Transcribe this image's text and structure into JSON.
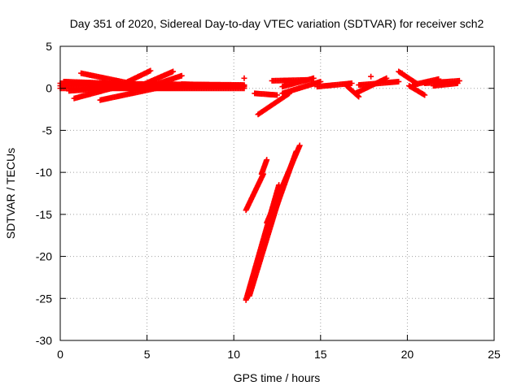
{
  "chart_data": {
    "type": "scatter",
    "title": "Day 351 of 2020, Sidereal Day-to-day VTEC variation (SDTVAR) for receiver sch2",
    "xlabel": "GPS time / hours",
    "ylabel": "SDTVAR / TECUs",
    "xlim": [
      0,
      25
    ],
    "ylim": [
      -30,
      5
    ],
    "xticks": [
      0,
      5,
      10,
      15,
      20,
      25
    ],
    "yticks": [
      5,
      0,
      -5,
      -10,
      -15,
      -20,
      -25,
      -30
    ],
    "grid": true,
    "marker": "plus",
    "color": "#ff0000",
    "segments": [
      {
        "x0": 0.0,
        "y0": 0.3,
        "x1": 10.6,
        "y1": 0.2
      },
      {
        "x0": 0.0,
        "y0": 0.6,
        "x1": 10.6,
        "y1": 0.4
      },
      {
        "x0": 0.0,
        "y0": 0.0,
        "x1": 10.6,
        "y1": 0.0
      },
      {
        "x0": 0.2,
        "y0": 0.8,
        "x1": 4.0,
        "y1": 0.5
      },
      {
        "x0": 0.5,
        "y0": -0.3,
        "x1": 4.5,
        "y1": 0.2
      },
      {
        "x0": 0.8,
        "y0": -1.2,
        "x1": 3.5,
        "y1": 0.3
      },
      {
        "x0": 1.2,
        "y0": 1.8,
        "x1": 4.0,
        "y1": 0.6
      },
      {
        "x0": 2.3,
        "y0": -1.4,
        "x1": 5.5,
        "y1": 0.0
      },
      {
        "x0": 3.5,
        "y0": 0.4,
        "x1": 5.2,
        "y1": 2.1
      },
      {
        "x0": 4.5,
        "y0": 0.2,
        "x1": 6.5,
        "y1": 2.0
      },
      {
        "x0": 4.8,
        "y0": 0.0,
        "x1": 7.0,
        "y1": 1.5
      },
      {
        "x0": 7.0,
        "y0": 0.5,
        "x1": 10.6,
        "y1": 0.3
      },
      {
        "x0": 11.2,
        "y0": -0.6,
        "x1": 12.5,
        "y1": -0.8
      },
      {
        "x0": 11.4,
        "y0": -3.1,
        "x1": 13.2,
        "y1": -0.6
      },
      {
        "x0": 12.2,
        "y0": 0.9,
        "x1": 14.2,
        "y1": 1.0
      },
      {
        "x0": 12.8,
        "y0": -0.6,
        "x1": 15.0,
        "y1": 0.8
      },
      {
        "x0": 12.8,
        "y0": 0.2,
        "x1": 14.6,
        "y1": 1.2
      },
      {
        "x0": 14.8,
        "y0": 0.2,
        "x1": 16.8,
        "y1": 0.6
      },
      {
        "x0": 16.5,
        "y0": 0.3,
        "x1": 17.2,
        "y1": -1.0
      },
      {
        "x0": 17.0,
        "y0": -0.6,
        "x1": 18.8,
        "y1": 1.2
      },
      {
        "x0": 17.2,
        "y0": 0.4,
        "x1": 19.5,
        "y1": 0.8
      },
      {
        "x0": 19.5,
        "y0": 2.0,
        "x1": 20.6,
        "y1": 0.5
      },
      {
        "x0": 20.1,
        "y0": 0.3,
        "x1": 21.0,
        "y1": -0.8
      },
      {
        "x0": 20.3,
        "y0": 0.4,
        "x1": 21.8,
        "y1": 1.1
      },
      {
        "x0": 21.0,
        "y0": 0.6,
        "x1": 23.0,
        "y1": 0.9
      },
      {
        "x0": 21.5,
        "y0": 0.3,
        "x1": 22.9,
        "y1": 0.6
      },
      {
        "x0": 10.7,
        "y0": -14.5,
        "x1": 11.7,
        "y1": -10.2
      },
      {
        "x0": 11.6,
        "y0": -10.2,
        "x1": 11.9,
        "y1": -8.5
      },
      {
        "x0": 10.7,
        "y0": -25.2,
        "x1": 12.6,
        "y1": -11.5
      },
      {
        "x0": 10.9,
        "y0": -24.7,
        "x1": 12.7,
        "y1": -12.5
      },
      {
        "x0": 11.9,
        "y0": -16.0,
        "x1": 13.8,
        "y1": -6.8
      },
      {
        "x0": 12.3,
        "y0": -15.0,
        "x1": 13.6,
        "y1": -7.5
      }
    ],
    "outliers": [
      {
        "x": 10.6,
        "y": 1.2
      },
      {
        "x": 19.7,
        "y": 1.8
      },
      {
        "x": 17.9,
        "y": 1.4
      }
    ]
  }
}
